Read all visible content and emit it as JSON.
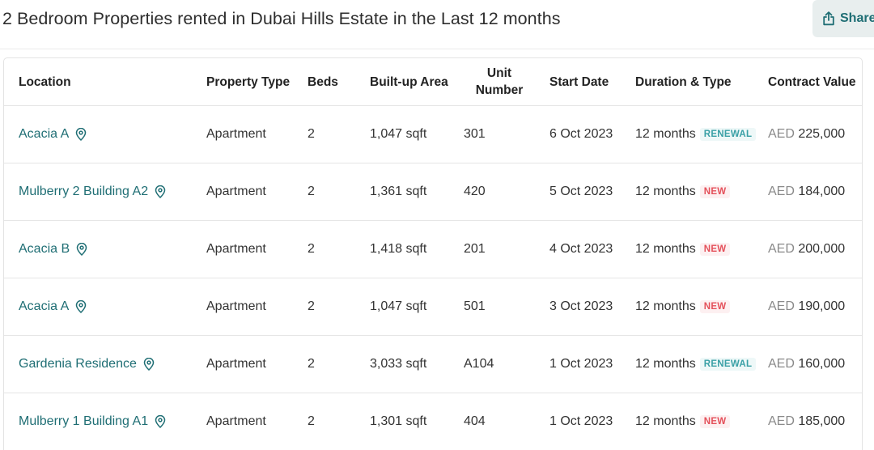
{
  "page": {
    "title": "2 Bedroom Properties rented in Dubai Hills Estate in the Last 12 months",
    "share_label": "Share"
  },
  "table": {
    "headers": {
      "location": "Location",
      "property_type": "Property Type",
      "beds": "Beds",
      "built_up_area": "Built-up Area",
      "unit_number_line1": "Unit",
      "unit_number_line2": "Number",
      "start_date": "Start Date",
      "duration_type": "Duration & Type",
      "contract_value": "Contract Value"
    },
    "rows": [
      {
        "location": "Acacia A",
        "property_type": "Apartment",
        "beds": "2",
        "area": "1,047 sqft",
        "unit": "301",
        "start_date": "6 Oct 2023",
        "duration": "12 months",
        "type": "RENEWAL",
        "currency": "AED",
        "value": "225,000"
      },
      {
        "location": "Mulberry 2 Building A2",
        "property_type": "Apartment",
        "beds": "2",
        "area": "1,361 sqft",
        "unit": "420",
        "start_date": "5 Oct 2023",
        "duration": "12 months",
        "type": "NEW",
        "currency": "AED",
        "value": "184,000"
      },
      {
        "location": "Acacia B",
        "property_type": "Apartment",
        "beds": "2",
        "area": "1,418 sqft",
        "unit": "201",
        "start_date": "4 Oct 2023",
        "duration": "12 months",
        "type": "NEW",
        "currency": "AED",
        "value": "200,000"
      },
      {
        "location": "Acacia A",
        "property_type": "Apartment",
        "beds": "2",
        "area": "1,047 sqft",
        "unit": "501",
        "start_date": "3 Oct 2023",
        "duration": "12 months",
        "type": "NEW",
        "currency": "AED",
        "value": "190,000"
      },
      {
        "location": "Gardenia Residence",
        "property_type": "Apartment",
        "beds": "2",
        "area": "3,033 sqft",
        "unit": "A104",
        "start_date": "1 Oct 2023",
        "duration": "12 months",
        "type": "RENEWAL",
        "currency": "AED",
        "value": "160,000"
      },
      {
        "location": "Mulberry 1 Building A1",
        "property_type": "Apartment",
        "beds": "2",
        "area": "1,301 sqft",
        "unit": "404",
        "start_date": "1 Oct 2023",
        "duration": "12 months",
        "type": "NEW",
        "currency": "AED",
        "value": "185,000"
      }
    ]
  },
  "icons": {
    "share": "share-icon",
    "location_pin": "map-pin-icon"
  },
  "colors": {
    "link": "#1f6e74",
    "renewal_badge": "#3aa0a6",
    "new_badge": "#e4505a",
    "share_bg": "#e8eeee"
  }
}
